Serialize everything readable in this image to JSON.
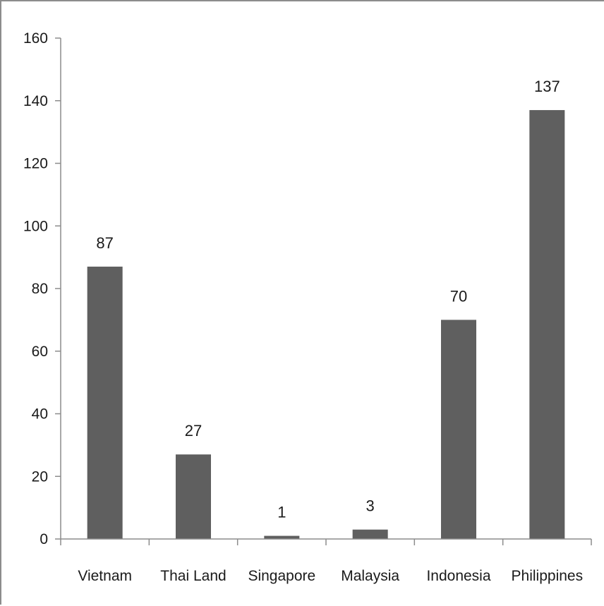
{
  "chart_data": {
    "type": "bar",
    "categories": [
      "Vietnam",
      "Thai Land",
      "Singapore",
      "Malaysia",
      "Indonesia",
      "Philippines"
    ],
    "values": [
      87,
      27,
      1,
      3,
      70,
      137
    ],
    "data_labels": [
      "87",
      "27",
      "1",
      "3",
      "70",
      "137"
    ],
    "title": "",
    "xlabel": "",
    "ylabel": "",
    "ylim": [
      0,
      160
    ],
    "yticks": [
      0,
      20,
      40,
      60,
      80,
      100,
      120,
      140,
      160
    ],
    "grid": false,
    "legend": "none",
    "colors": {
      "bar": "#5f5f5f",
      "axis": "#8c8c8c",
      "text": "#1a1a1a"
    }
  }
}
